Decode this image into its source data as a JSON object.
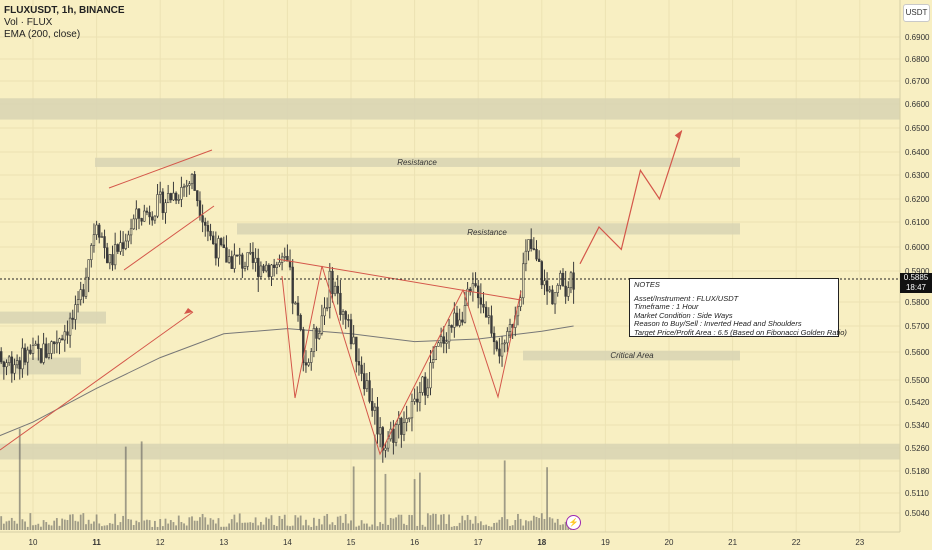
{
  "legend": {
    "symbol": "FLUXUSDT, 1h, BINANCE",
    "vol": "Vol · FLUX",
    "ema": "EMA (200, close)"
  },
  "currency_badge": "USDT",
  "current_price": {
    "price": "0.5885",
    "countdown": "18:47"
  },
  "colors": {
    "background": "#f8efc2",
    "zone": "#d9d5b4",
    "annotation": "#d4574a",
    "candle": "#3b3b3b",
    "ema": "#777777"
  },
  "zone_labels": {
    "resistance_upper": "Resistance",
    "resistance_lower": "Resistance",
    "critical": "Critical Area"
  },
  "notes": {
    "title": "NOTES",
    "lines": [
      "Asset/Instrument : FLUX/USDT",
      "Timeframe : 1 Hour",
      "Market Condition : Side Ways",
      "Reason to Buy/Sell : Inverted Head and Shoulders",
      "Target Price/Profit Area : 6.5 (Based on Fibonacci Golden Ratio)"
    ]
  },
  "chart_data": {
    "type": "candlestick",
    "symbol": "FLUXUSDT",
    "timeframe": "1h",
    "exchange": "BINANCE",
    "y_ticks": [
      "0.6900",
      "0.6800",
      "0.6700",
      "0.6600",
      "0.6500",
      "0.6400",
      "0.6300",
      "0.6200",
      "0.6100",
      "0.6000",
      "0.5900",
      "0.5800",
      "0.5700",
      "0.5600",
      "0.5500",
      "0.5420",
      "0.5340",
      "0.5260",
      "0.5180",
      "0.5110",
      "0.5040"
    ],
    "x_ticks": [
      "10",
      "11",
      "12",
      "13",
      "14",
      "15",
      "16",
      "17",
      "18",
      "19",
      "20",
      "21",
      "22",
      "23"
    ],
    "bold_x_ticks": [
      "11",
      "18"
    ],
    "price_samples": [
      {
        "day": 9.0,
        "price": 0.548
      },
      {
        "day": 9.5,
        "price": 0.556
      },
      {
        "day": 10.2,
        "price": 0.56
      },
      {
        "day": 10.7,
        "price": 0.575
      },
      {
        "day": 11.0,
        "price": 0.612
      },
      {
        "day": 11.2,
        "price": 0.593
      },
      {
        "day": 11.6,
        "price": 0.611
      },
      {
        "day": 12.0,
        "price": 0.618
      },
      {
        "day": 12.5,
        "price": 0.628
      },
      {
        "day": 12.8,
        "price": 0.603
      },
      {
        "day": 13.0,
        "price": 0.596
      },
      {
        "day": 13.4,
        "price": 0.593
      },
      {
        "day": 14.0,
        "price": 0.592
      },
      {
        "day": 14.3,
        "price": 0.555
      },
      {
        "day": 14.7,
        "price": 0.588
      },
      {
        "day": 15.2,
        "price": 0.552
      },
      {
        "day": 15.5,
        "price": 0.528
      },
      {
        "day": 16.0,
        "price": 0.54
      },
      {
        "day": 16.5,
        "price": 0.568
      },
      {
        "day": 17.0,
        "price": 0.585
      },
      {
        "day": 17.4,
        "price": 0.557
      },
      {
        "day": 17.8,
        "price": 0.601
      },
      {
        "day": 18.1,
        "price": 0.582
      },
      {
        "day": 18.5,
        "price": 0.5885
      }
    ],
    "ema200": [
      {
        "day": 9.0,
        "price": 0.526
      },
      {
        "day": 10.0,
        "price": 0.535
      },
      {
        "day": 11.0,
        "price": 0.547
      },
      {
        "day": 12.0,
        "price": 0.558
      },
      {
        "day": 13.0,
        "price": 0.567
      },
      {
        "day": 14.0,
        "price": 0.569
      },
      {
        "day": 15.0,
        "price": 0.567
      },
      {
        "day": 16.0,
        "price": 0.564
      },
      {
        "day": 17.0,
        "price": 0.565
      },
      {
        "day": 18.0,
        "price": 0.568
      },
      {
        "day": 18.5,
        "price": 0.57
      }
    ],
    "zones": [
      {
        "name": "top-zone",
        "y_from": 0.6535,
        "y_to": 0.6625
      },
      {
        "name": "resistance-upper",
        "y_from": 0.6335,
        "y_to": 0.6375,
        "label_key": "resistance_upper"
      },
      {
        "name": "resistance-lower",
        "y_from": 0.605,
        "y_to": 0.6095,
        "label_key": "resistance_lower"
      },
      {
        "name": "left-zone-1",
        "y_from": 0.571,
        "y_to": 0.576
      },
      {
        "name": "left-zone-2",
        "y_from": 0.552,
        "y_to": 0.558
      },
      {
        "name": "critical-area",
        "y_from": 0.557,
        "y_to": 0.5605,
        "label_key": "critical"
      },
      {
        "name": "bottom-zone",
        "y_from": 0.522,
        "y_to": 0.5275
      }
    ],
    "projection_path": [
      {
        "day": 18.6,
        "price": 0.593
      },
      {
        "day": 18.9,
        "price": 0.608
      },
      {
        "day": 19.25,
        "price": 0.599
      },
      {
        "day": 19.55,
        "price": 0.632
      },
      {
        "day": 19.85,
        "price": 0.62
      },
      {
        "day": 20.2,
        "price": 0.649
      }
    ]
  }
}
